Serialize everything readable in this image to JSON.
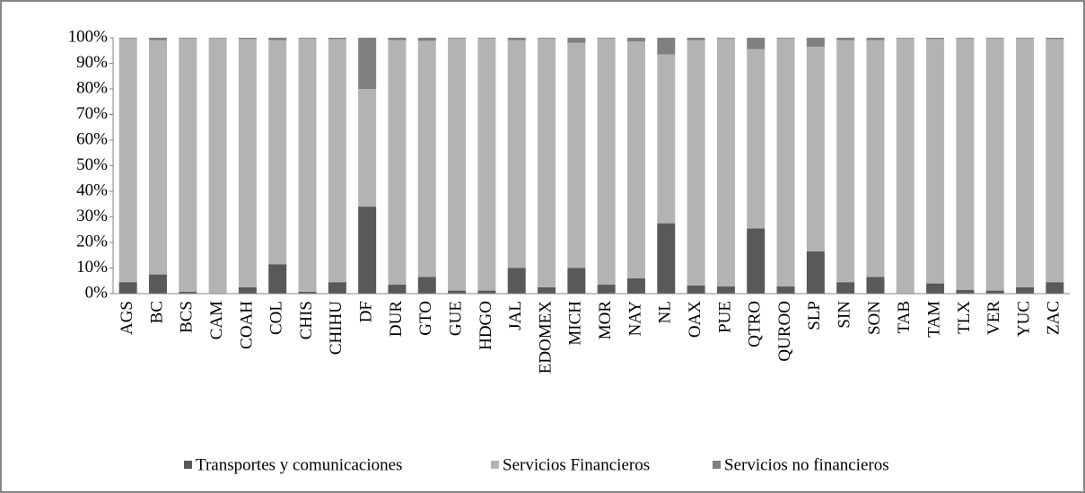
{
  "chart_data": {
    "type": "stacked_bar",
    "categories": [
      "AGS",
      "BC",
      "BCS",
      "CAM",
      "COAH",
      "COL",
      "CHIS",
      "CHIHU",
      "DF",
      "DUR",
      "GTO",
      "GUE",
      "HDGO",
      "JAL",
      "EDOMEX",
      "MICH",
      "MOR",
      "NAY",
      "NL",
      "OAX",
      "PUE",
      "QTRO",
      "QUROO",
      "SLP",
      "SIN",
      "SON",
      "TAB",
      "TAM",
      "TLX",
      "VER",
      "YUC",
      "ZAC"
    ],
    "series": [
      {
        "name": "Transportes y comunicaciones",
        "color": "#595959",
        "values": [
          4.5,
          7.5,
          0.7,
          0.2,
          2.5,
          11.5,
          0.7,
          4.5,
          34,
          3.5,
          6.5,
          1.2,
          1.2,
          10,
          2.5,
          10,
          3.5,
          6,
          27.5,
          3.2,
          2.8,
          25.5,
          2.8,
          16.5,
          4.5,
          6.5,
          0.2,
          4,
          1.5,
          1.2,
          2.5,
          4.5
        ]
      },
      {
        "name": "Servicios Financieros",
        "color": "#b3b3b3",
        "values": [
          95.2,
          91.5,
          99,
          99.6,
          97,
          87.5,
          99,
          95,
          46,
          95.5,
          92.3,
          98.5,
          98.5,
          89,
          97.2,
          88,
          96.2,
          92.5,
          66,
          95.8,
          96.9,
          70,
          96.9,
          80,
          94.5,
          92.5,
          99.6,
          95.5,
          98.2,
          98.5,
          97.2,
          95
        ]
      },
      {
        "name": "Servicios no financieros",
        "color": "#808080",
        "values": [
          0.3,
          1,
          0.3,
          0.2,
          0.5,
          1,
          0.3,
          0.5,
          20,
          1,
          1.2,
          0.3,
          0.3,
          1,
          0.3,
          2,
          0.3,
          1.5,
          6.5,
          1,
          0.3,
          4.5,
          0.3,
          3.5,
          1,
          1,
          0.2,
          0.5,
          0.3,
          0.3,
          0.3,
          0.5
        ]
      }
    ],
    "ylim": [
      0,
      100
    ],
    "yticks": [
      {
        "value": 0,
        "label": "0%"
      },
      {
        "value": 10,
        "label": "10%"
      },
      {
        "value": 20,
        "label": "20%"
      },
      {
        "value": 30,
        "label": "30%"
      },
      {
        "value": 40,
        "label": "40%"
      },
      {
        "value": 50,
        "label": "50%"
      },
      {
        "value": 60,
        "label": "60%"
      },
      {
        "value": 70,
        "label": "70%"
      },
      {
        "value": 80,
        "label": "80%"
      },
      {
        "value": 90,
        "label": "90%"
      },
      {
        "value": 100,
        "label": "100%"
      }
    ],
    "legend": "bottom"
  }
}
